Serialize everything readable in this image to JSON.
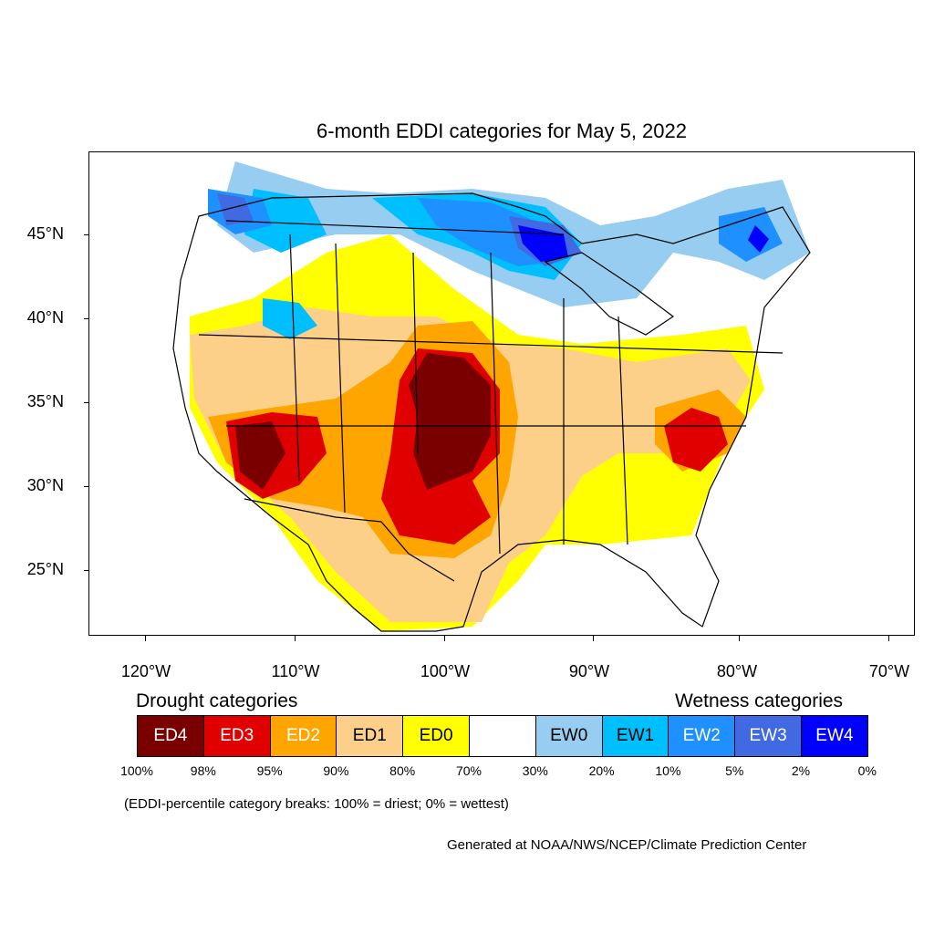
{
  "title": "6-month EDDI categories for May 5, 2022",
  "lat_labels": [
    "45°N",
    "40°N",
    "35°N",
    "30°N",
    "25°N"
  ],
  "lon_labels": [
    "120°W",
    "110°W",
    "100°W",
    "90°W",
    "80°W",
    "70°W"
  ],
  "legend": {
    "drought_heading": "Drought categories",
    "wetness_heading": "Wetness categories",
    "categories": [
      {
        "label": "ED4",
        "color": "#7a0000",
        "text_color": "#ffffff"
      },
      {
        "label": "ED3",
        "color": "#e10000",
        "text_color": "#ffffff"
      },
      {
        "label": "ED2",
        "color": "#ffa500",
        "text_color": "#ffffff"
      },
      {
        "label": "ED1",
        "color": "#fdd08a",
        "text_color": "#000000"
      },
      {
        "label": "ED0",
        "color": "#ffff00",
        "text_color": "#000000"
      },
      {
        "label": "",
        "color": "#ffffff",
        "text_color": "#000000"
      },
      {
        "label": "EW0",
        "color": "#96cdf0",
        "text_color": "#000000"
      },
      {
        "label": "EW1",
        "color": "#00bfff",
        "text_color": "#000000"
      },
      {
        "label": "EW2",
        "color": "#1e90ff",
        "text_color": "#ffffff"
      },
      {
        "label": "EW3",
        "color": "#4169e1",
        "text_color": "#ffffff"
      },
      {
        "label": "EW4",
        "color": "#0000ff",
        "text_color": "#ffffff"
      }
    ],
    "breaks": [
      "100%",
      "98%",
      "95%",
      "90%",
      "80%",
      "70%",
      "30%",
      "20%",
      "10%",
      "5%",
      "2%",
      "0%"
    ]
  },
  "note": "(EDDI-percentile category breaks: 100% = driest; 0% = wettest)",
  "credit": "Generated at NOAA/NWS/NCEP/Climate Prediction Center"
}
